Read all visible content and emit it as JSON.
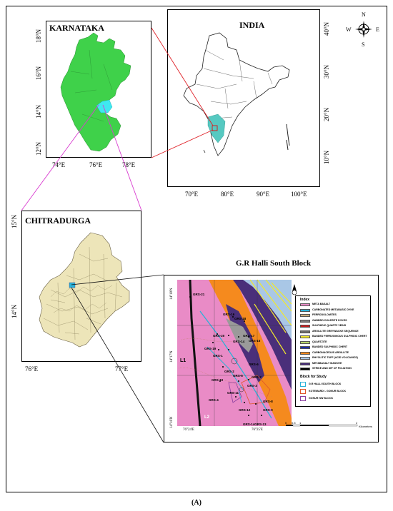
{
  "caption": "(A)",
  "karnataka": {
    "title": "KARNATAKA",
    "lat_ticks": [
      "18°N",
      "16°N",
      "14°N",
      "12°N"
    ],
    "lon_ticks": [
      "74°E",
      "76°E",
      "78°E"
    ]
  },
  "india": {
    "title": "INDIA",
    "lat_ticks": [
      "40°N",
      "30°N",
      "20°N",
      "10°N"
    ],
    "lon_ticks": [
      "70°E",
      "80°E",
      "90°E",
      "100°E"
    ],
    "compass": {
      "n": "N",
      "s": "S",
      "e": "E",
      "w": "W"
    }
  },
  "chitradurga": {
    "title": "CHITRADURGA",
    "lat_ticks": [
      "15°N",
      "14°N"
    ],
    "lon_ticks": [
      "76°E",
      "77°E"
    ]
  },
  "block": {
    "title": "G.R Halli South Block",
    "lat_ticks": [
      "14°18'N",
      "14°17'N",
      "14°16'N"
    ],
    "lon_ticks": [
      "76°24'E",
      "76°25'E"
    ],
    "labels": [
      "GRS-21",
      "GRS-16",
      "GRS-18",
      "GRS-20",
      "GRS-17",
      "GRS-15",
      "GRS-14",
      "GRS-19",
      "GRS-1",
      "GRS-2",
      "GRS-10",
      "GRS-5",
      "GRS-11",
      "GRS-4",
      "GRS-3",
      "GRS-12",
      "GRS-9",
      "GRS-8",
      "GRS-14GRS-13",
      "GRS-6",
      "GRS-7",
      "L1",
      "L2"
    ],
    "scale": {
      "ticks": [
        "0",
        "0.5",
        "1",
        "2"
      ],
      "unit": "Kilometers"
    },
    "legend": {
      "title": "Index",
      "items": [
        {
          "label": "META BASALT",
          "color": "#e98bc6"
        },
        {
          "label": "CARBONATED METABASIC DYKE",
          "color": "#2bb2d8"
        },
        {
          "label": "FERRODOLOMITES",
          "color": "#c7ab7a"
        },
        {
          "label": "GABBRO DOLERITE DYKES",
          "color": "#7c7c7c"
        },
        {
          "label": "SULPHIDIC QUARTZ VEINS",
          "color": "#c41d1d"
        },
        {
          "label": "ARGILLITE GREYWACKE SEQUENCE",
          "color": "#6b6b6b"
        },
        {
          "label": "BANDED FERRUGINOUS SULPHIDIC CHERT",
          "color": "#f2e92b"
        },
        {
          "label": "QUARTZITE",
          "color": "#b7d66a"
        },
        {
          "label": "BANDED SULPHIDIC CHERT",
          "color": "#1c2ea8"
        },
        {
          "label": "CARBONACEOUS ARGILLITE",
          "color": "#f58a1e"
        },
        {
          "label": "RHYOLITIC TUFF (ACID VOLCANICS)",
          "color": "#a9c7e6"
        },
        {
          "label": "METABASALT MASSIVE",
          "color": "#4a2f7a"
        },
        {
          "label": "STRIKE AND DIP OF FOLIATION",
          "color": "#000000"
        }
      ],
      "blocks_title": "Block for Study",
      "blocks": [
        {
          "label": "G.R HALLI SOUTH BLOCK",
          "color": "#2bb2d8"
        },
        {
          "label": "KOTEMARDI - GONUR BLOCK",
          "color": "#e0562a"
        },
        {
          "label": "GONUR NW BLOCK",
          "color": "#8a3fa0"
        }
      ]
    }
  }
}
